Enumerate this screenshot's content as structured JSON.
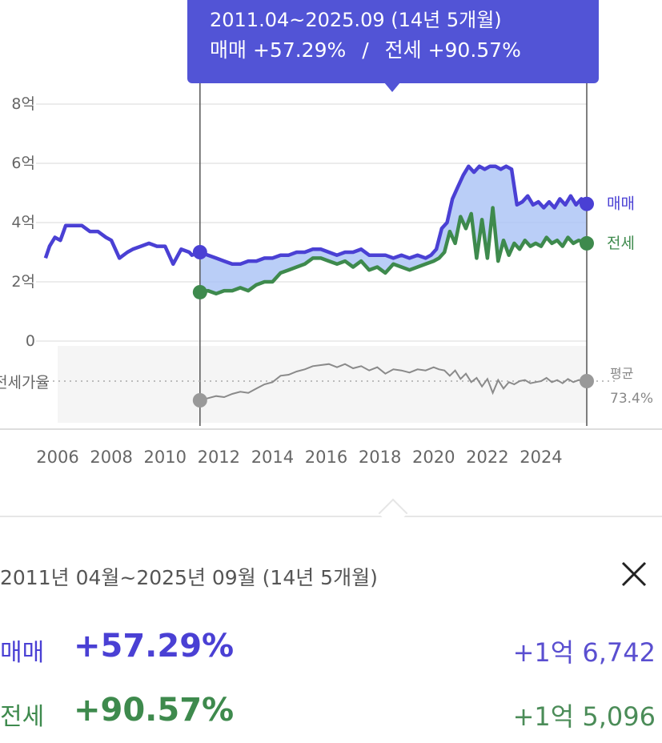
{
  "tooltip": {
    "period": "2011.04~2025.09 (14년 5개월)",
    "sale_label": "매매",
    "sale_pct": "+57.29%",
    "separator": "/",
    "jeonse_label": "전세",
    "jeonse_pct": "+90.57%"
  },
  "chart_data": {
    "type": "line",
    "x_range": [
      2005.5,
      2025.9
    ],
    "x_ticks": [
      "2006",
      "2008",
      "2010",
      "2012",
      "2014",
      "2016",
      "2018",
      "2020",
      "2022",
      "2024"
    ],
    "y_range": [
      0,
      8
    ],
    "y_ticks": [
      {
        "value": 8,
        "label": "8억"
      },
      {
        "value": 6,
        "label": "6억"
      },
      {
        "value": 4,
        "label": "4억"
      },
      {
        "value": 2,
        "label": "2억"
      },
      {
        "value": 0,
        "label": "0"
      }
    ],
    "colors": {
      "sale": "#4a40d4",
      "jeonse": "#3e8a4d",
      "fill": "#a9c2f5",
      "ratio": "#8a8a8a",
      "marker": "#555555"
    },
    "range_start": 2011.3,
    "range_end": 2025.7,
    "series": [
      {
        "name": "매매",
        "x": [
          2005.55,
          2005.7,
          2005.9,
          2006.1,
          2006.3,
          2006.5,
          2006.7,
          2006.9,
          2007.2,
          2007.5,
          2007.8,
          2008.0,
          2008.3,
          2008.6,
          2008.8,
          2009.1,
          2009.4,
          2009.7,
          2010.0,
          2010.3,
          2010.6,
          2010.9,
          2011.0,
          2011.3,
          2011.6,
          2011.9,
          2012.2,
          2012.5,
          2012.8,
          2013.1,
          2013.4,
          2013.7,
          2014.0,
          2014.3,
          2014.6,
          2014.9,
          2015.2,
          2015.5,
          2015.8,
          2016.1,
          2016.4,
          2016.7,
          2017.0,
          2017.3,
          2017.6,
          2017.9,
          2018.2,
          2018.5,
          2018.8,
          2019.1,
          2019.4,
          2019.7,
          2019.9,
          2020.1,
          2020.3,
          2020.5,
          2020.7,
          2020.9,
          2021.1,
          2021.3,
          2021.5,
          2021.7,
          2021.9,
          2022.1,
          2022.3,
          2022.5,
          2022.7,
          2022.9,
          2023.1,
          2023.3,
          2023.5,
          2023.7,
          2023.9,
          2024.1,
          2024.3,
          2024.5,
          2024.7,
          2024.9,
          2025.1,
          2025.3,
          2025.5,
          2025.7
        ],
        "values": [
          2.8,
          3.2,
          3.5,
          3.4,
          3.9,
          3.9,
          3.9,
          3.9,
          3.7,
          3.7,
          3.5,
          3.4,
          2.8,
          3.0,
          3.1,
          3.2,
          3.3,
          3.2,
          3.2,
          2.6,
          3.1,
          3.0,
          2.9,
          3.0,
          2.9,
          2.8,
          2.7,
          2.6,
          2.6,
          2.7,
          2.7,
          2.8,
          2.8,
          2.9,
          2.9,
          3.0,
          3.0,
          3.1,
          3.1,
          3.0,
          2.9,
          3.0,
          3.0,
          3.1,
          2.9,
          2.9,
          2.9,
          2.8,
          2.9,
          2.8,
          2.9,
          2.8,
          2.9,
          3.1,
          3.8,
          4.0,
          4.8,
          5.2,
          5.6,
          5.9,
          5.7,
          5.9,
          5.8,
          5.9,
          5.9,
          5.8,
          5.9,
          5.8,
          4.6,
          4.7,
          4.9,
          4.6,
          4.7,
          4.5,
          4.7,
          4.5,
          4.8,
          4.6,
          4.9,
          4.6,
          4.8,
          4.63
        ]
      },
      {
        "name": "전세",
        "x": [
          2011.3,
          2011.6,
          2011.9,
          2012.2,
          2012.5,
          2012.8,
          2013.1,
          2013.4,
          2013.7,
          2014.0,
          2014.3,
          2014.6,
          2014.9,
          2015.2,
          2015.5,
          2015.8,
          2016.1,
          2016.4,
          2016.7,
          2017.0,
          2017.3,
          2017.6,
          2017.9,
          2018.2,
          2018.5,
          2018.8,
          2019.1,
          2019.4,
          2019.7,
          2020.0,
          2020.2,
          2020.4,
          2020.6,
          2020.8,
          2021.0,
          2021.2,
          2021.4,
          2021.6,
          2021.8,
          2022.0,
          2022.2,
          2022.4,
          2022.6,
          2022.8,
          2023.0,
          2023.2,
          2023.4,
          2023.6,
          2023.8,
          2024.0,
          2024.2,
          2024.4,
          2024.6,
          2024.8,
          2025.0,
          2025.2,
          2025.4,
          2025.7
        ],
        "values": [
          1.65,
          1.7,
          1.6,
          1.7,
          1.7,
          1.8,
          1.7,
          1.9,
          2.0,
          2.0,
          2.3,
          2.4,
          2.5,
          2.6,
          2.8,
          2.8,
          2.7,
          2.6,
          2.7,
          2.5,
          2.7,
          2.4,
          2.5,
          2.3,
          2.6,
          2.5,
          2.4,
          2.5,
          2.6,
          2.7,
          2.8,
          3.0,
          3.7,
          3.3,
          4.2,
          3.8,
          4.3,
          2.8,
          4.1,
          2.8,
          4.5,
          2.7,
          3.4,
          2.9,
          3.3,
          3.1,
          3.4,
          3.2,
          3.3,
          3.2,
          3.5,
          3.3,
          3.4,
          3.2,
          3.5,
          3.3,
          3.4,
          3.3
        ]
      }
    ],
    "ratio": {
      "label": "전세가율",
      "avg_label": "평균",
      "avg_value": "73.4%",
      "x": [
        2011.3,
        2011.6,
        2011.9,
        2012.2,
        2012.5,
        2012.8,
        2013.1,
        2013.4,
        2013.7,
        2014.0,
        2014.3,
        2014.6,
        2014.9,
        2015.2,
        2015.5,
        2015.8,
        2016.1,
        2016.4,
        2016.7,
        2017.0,
        2017.3,
        2017.6,
        2017.9,
        2018.2,
        2018.5,
        2018.8,
        2019.1,
        2019.4,
        2019.7,
        2020.0,
        2020.2,
        2020.4,
        2020.6,
        2020.8,
        2021.0,
        2021.2,
        2021.4,
        2021.6,
        2021.8,
        2022.0,
        2022.2,
        2022.4,
        2022.6,
        2022.8,
        2023.0,
        2023.2,
        2023.4,
        2023.6,
        2023.8,
        2024.0,
        2024.2,
        2024.4,
        2024.6,
        2024.8,
        2025.0,
        2025.2,
        2025.4,
        2025.7
      ],
      "values": [
        55,
        57,
        59,
        58,
        61,
        63,
        62,
        66,
        70,
        72,
        78,
        79,
        82,
        84,
        87,
        88,
        89,
        86,
        89,
        85,
        87,
        83,
        86,
        80,
        84,
        83,
        81,
        84,
        83,
        86,
        84,
        83,
        78,
        83,
        75,
        80,
        72,
        76,
        68,
        75,
        62,
        74,
        66,
        72,
        70,
        73,
        74,
        71,
        72,
        73,
        76,
        72,
        74,
        71,
        75,
        72,
        74,
        73
      ]
    }
  },
  "summary": {
    "period": "2011년 04월~2025년 09월 (14년 5개월)",
    "close_icon": "close-icon",
    "sale": {
      "label": "매매",
      "pct": "+57.29%",
      "amount": "+1억 6,742"
    },
    "jeonse": {
      "label": "전세",
      "pct": "+90.57%",
      "amount": "+1억 5,096"
    }
  }
}
